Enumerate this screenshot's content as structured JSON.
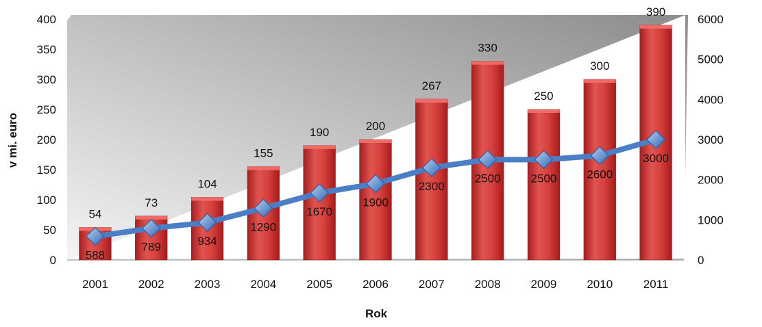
{
  "chart_data": {
    "type": "bar",
    "xlabel": "Rok",
    "ylabel": "v mi. euro",
    "categories": [
      "2001",
      "2002",
      "2003",
      "2004",
      "2005",
      "2006",
      "2007",
      "2008",
      "2009",
      "2010",
      "2011"
    ],
    "ylim": [
      0,
      400
    ],
    "y2lim": [
      0,
      6000
    ],
    "yticks": [
      "0",
      "50",
      "100",
      "150",
      "200",
      "250",
      "300",
      "350",
      "400"
    ],
    "y2ticks": [
      "0",
      "1000",
      "2000",
      "3000",
      "4000",
      "5000",
      "6000"
    ],
    "series": [
      {
        "type": "bar",
        "axis": "left",
        "color": "#d03a36",
        "values": [
          54,
          73,
          104,
          155,
          190,
          200,
          267,
          330,
          250,
          300,
          390
        ]
      },
      {
        "type": "line",
        "axis": "right",
        "color": "#4a7fc6",
        "marker": "diamond",
        "values": [
          588,
          789,
          934,
          1290,
          1670,
          1900,
          2300,
          2500,
          2500,
          2600,
          3000
        ]
      }
    ],
    "grid": false,
    "legend": "none"
  }
}
